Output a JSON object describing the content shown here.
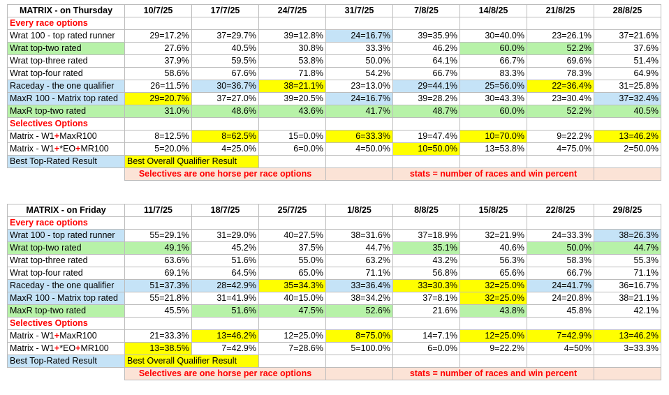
{
  "colors": {
    "blue": "#c5e3f7",
    "green": "#b7f2a8",
    "yellow": "#ffff00",
    "pink": "#fbe3d6",
    "section_red": "#ff0000"
  },
  "plus_sign": "+",
  "legend": {
    "best_top_rated": "Best Top-Rated Result",
    "best_overall": "Best Overall Qualifier Result",
    "selectives_note": "Selectives are one horse per race options",
    "stats_note": "stats = number of races and win percent"
  },
  "tables": [
    {
      "title": "MATRIX - on Thursday",
      "dates": [
        "10/7/25",
        "17/7/25",
        "24/7/25",
        "31/7/25",
        "7/8/25",
        "14/8/25",
        "21/8/25",
        "28/8/25"
      ],
      "section1": "Every race options",
      "section2": "Selectives Options",
      "rows": [
        {
          "label": "Wrat 100 - top rated runner",
          "lc": "",
          "v": [
            "29=17.2%",
            "37=29.7%",
            "39=12.8%",
            "24=16.7%",
            "39=35.9%",
            "30=40.0%",
            "23=26.1%",
            "37=21.6%"
          ],
          "c": [
            "",
            "",
            "",
            "blue",
            "",
            "",
            "",
            ""
          ]
        },
        {
          "label": "Wrat top-two rated",
          "lc": "green",
          "v": [
            "27.6%",
            "40.5%",
            "30.8%",
            "33.3%",
            "46.2%",
            "60.0%",
            "52.2%",
            "37.6%"
          ],
          "c": [
            "",
            "",
            "",
            "",
            "",
            "green",
            "green",
            ""
          ]
        },
        {
          "label": "Wrat top-three rated",
          "lc": "",
          "v": [
            "37.9%",
            "59.5%",
            "53.8%",
            "50.0%",
            "64.1%",
            "66.7%",
            "69.6%",
            "51.4%"
          ],
          "c": [
            "",
            "",
            "",
            "",
            "",
            "",
            "",
            ""
          ]
        },
        {
          "label": "Wrat top-four rated",
          "lc": "",
          "v": [
            "58.6%",
            "67.6%",
            "71.8%",
            "54.2%",
            "66.7%",
            "83.3%",
            "78.3%",
            "64.9%"
          ],
          "c": [
            "",
            "",
            "",
            "",
            "",
            "",
            "",
            ""
          ]
        },
        {
          "label": "Raceday - the one qualifier",
          "lc": "blue",
          "v": [
            "26=11.5%",
            "30=36.7%",
            "38=21.1%",
            "23=13.0%",
            "29=44.1%",
            "25=56.0%",
            "22=36.4%",
            "31=25.8%"
          ],
          "c": [
            "",
            "blue",
            "yellow",
            "",
            "blue",
            "blue",
            "yellow",
            ""
          ]
        },
        {
          "label": "MaxR 100 - Matrix top rated",
          "lc": "blue",
          "v": [
            "29=20.7%",
            "37=27.0%",
            "39=20.5%",
            "24=16.7%",
            "39=28.2%",
            "30=43.3%",
            "23=30.4%",
            "37=32.4%"
          ],
          "c": [
            "yellow",
            "",
            "",
            "blue",
            "",
            "",
            "",
            "blue"
          ]
        },
        {
          "label": "MaxR top-two rated",
          "lc": "green",
          "v": [
            "31.0%",
            "48.6%",
            "43.6%",
            "41.7%",
            "48.7%",
            "60.0%",
            "52.2%",
            "40.5%"
          ],
          "c": [
            "green",
            "green",
            "green",
            "green",
            "green",
            "green",
            "green",
            "green"
          ]
        }
      ],
      "selectives": [
        {
          "label_a": "Matrix - W1",
          "label_b": "MaxR100",
          "label_c": "",
          "v": [
            "8=12.5%",
            "8=62.5%",
            "15=0.0%",
            "6=33.3%",
            "19=47.4%",
            "10=70.0%",
            "9=22.2%",
            "13=46.2%"
          ],
          "c": [
            "",
            "yellow",
            "",
            "yellow",
            "",
            "yellow",
            "",
            "yellow"
          ]
        },
        {
          "label_a": "Matrix - W1",
          "label_b": "*EO",
          "label_c": "MR100",
          "v": [
            "5=20.0%",
            "4=25.0%",
            "6=0.0%",
            "4=50.0%",
            "10=50.0%",
            "13=53.8%",
            "4=75.0%",
            "2=50.0%"
          ],
          "c": [
            "",
            "",
            "",
            "",
            "yellow",
            "",
            "",
            ""
          ]
        }
      ]
    },
    {
      "title": "MATRIX - on Friday",
      "dates": [
        "11/7/25",
        "18/7/25",
        "25/7/25",
        "1/8/25",
        "8/8/25",
        "15/8/25",
        "22/8/25",
        "29/8/25"
      ],
      "section1": "Every race options",
      "section2": "Selectives Options",
      "rows": [
        {
          "label": "Wrat 100 - top rated runner",
          "lc": "blue",
          "v": [
            "55=29.1%",
            "31=29.0%",
            "40=27.5%",
            "38=31.6%",
            "37=18.9%",
            "32=21.9%",
            "24=33.3%",
            "38=26.3%"
          ],
          "c": [
            "",
            "",
            "",
            "",
            "",
            "",
            "",
            "blue"
          ]
        },
        {
          "label": "Wrat top-two rated",
          "lc": "green",
          "v": [
            "49.1%",
            "45.2%",
            "37.5%",
            "44.7%",
            "35.1%",
            "40.6%",
            "50.0%",
            "44.7%"
          ],
          "c": [
            "green",
            "",
            "",
            "",
            "green",
            "",
            "green",
            "green"
          ]
        },
        {
          "label": "Wrat top-three rated",
          "lc": "",
          "v": [
            "63.6%",
            "51.6%",
            "55.0%",
            "63.2%",
            "43.2%",
            "56.3%",
            "58.3%",
            "55.3%"
          ],
          "c": [
            "",
            "",
            "",
            "",
            "",
            "",
            "",
            ""
          ]
        },
        {
          "label": "Wrat top-four rated",
          "lc": "",
          "v": [
            "69.1%",
            "64.5%",
            "65.0%",
            "71.1%",
            "56.8%",
            "65.6%",
            "66.7%",
            "71.1%"
          ],
          "c": [
            "",
            "",
            "",
            "",
            "",
            "",
            "",
            ""
          ]
        },
        {
          "label": "Raceday - the one qualifier",
          "lc": "blue",
          "v": [
            "51=37.3%",
            "28=42.9%",
            "35=34.3%",
            "33=36.4%",
            "33=30.3%",
            "32=25.0%",
            "24=41.7%",
            "36=16.7%"
          ],
          "c": [
            "blue",
            "blue",
            "yellow",
            "blue",
            "yellow",
            "yellow",
            "blue",
            ""
          ]
        },
        {
          "label": "MaxR 100 - Matrix top rated",
          "lc": "blue",
          "v": [
            "55=21.8%",
            "31=41.9%",
            "40=15.0%",
            "38=34.2%",
            "37=8.1%",
            "32=25.0%",
            "24=20.8%",
            "38=21.1%"
          ],
          "c": [
            "",
            "",
            "",
            "",
            "",
            "yellow",
            "",
            ""
          ]
        },
        {
          "label": "MaxR top-two rated",
          "lc": "green",
          "v": [
            "45.5%",
            "51.6%",
            "47.5%",
            "52.6%",
            "21.6%",
            "43.8%",
            "45.8%",
            "42.1%"
          ],
          "c": [
            "",
            "green",
            "green",
            "green",
            "",
            "green",
            "",
            ""
          ]
        }
      ],
      "selectives": [
        {
          "label_a": "Matrix - W1",
          "label_b": "MaxR100",
          "label_c": "",
          "v": [
            "21=33.3%",
            "13=46.2%",
            "12=25.0%",
            "8=75.0%",
            "14=7.1%",
            "12=25.0%",
            "7=42.9%",
            "13=46.2%"
          ],
          "c": [
            "",
            "yellow",
            "",
            "yellow",
            "",
            "yellow",
            "yellow",
            "yellow"
          ]
        },
        {
          "label_a": "Matrix - W1",
          "label_b": "*EO",
          "label_c": "MR100",
          "v": [
            "13=38.5%",
            "7=42.9%",
            "7=28.6%",
            "5=100.0%",
            "6=0.0%",
            "9=22.2%",
            "4=50%",
            "3=33.3%"
          ],
          "c": [
            "yellow",
            "",
            "",
            "",
            "",
            "",
            "",
            ""
          ]
        }
      ]
    }
  ]
}
